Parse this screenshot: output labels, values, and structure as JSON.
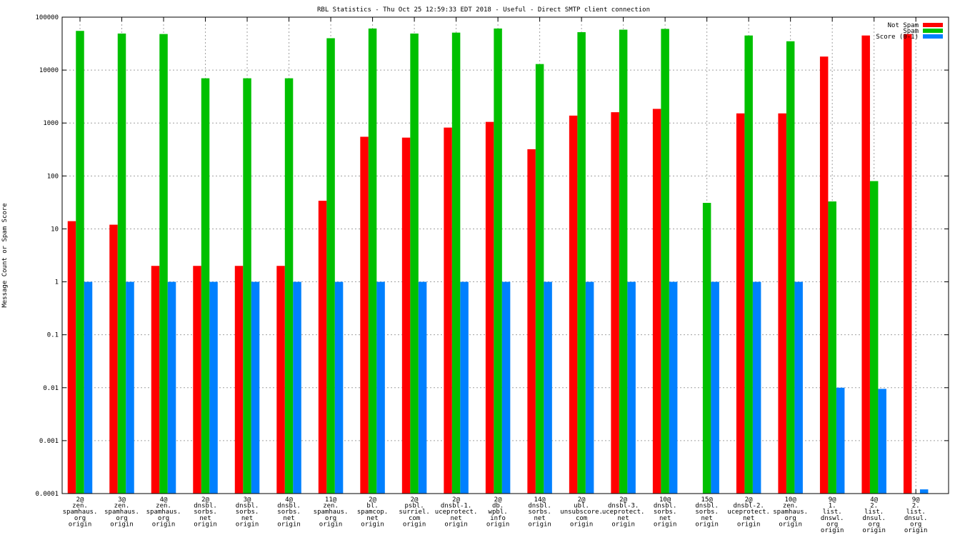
{
  "chart_data": {
    "type": "bar",
    "title": "RBL Statistics - Thu Oct 25 12:59:33 EDT 2018 - Useful - Direct SMTP client connection",
    "ylabel": "Message Count or Spam Score",
    "xlabel": "",
    "yscale": "log",
    "ylim": [
      0.0001,
      100000
    ],
    "grid": true,
    "legend_position": "top-right",
    "y_ticks": [
      "0.0001",
      "0.001",
      "0.01",
      "0.1",
      "1",
      "10",
      "100",
      "1000",
      "10000",
      "100000"
    ],
    "categories": [
      [
        "2@",
        "zen.",
        "spamhaus.",
        "org",
        "origin"
      ],
      [
        "3@",
        "zen.",
        "spamhaus.",
        "org",
        "origin"
      ],
      [
        "4@",
        "zen.",
        "spamhaus.",
        "org",
        "origin"
      ],
      [
        "2@",
        "dnsbl.",
        "sorbs.",
        "net",
        "origin"
      ],
      [
        "3@",
        "dnsbl.",
        "sorbs.",
        "net",
        "origin"
      ],
      [
        "4@",
        "dnsbl.",
        "sorbs.",
        "net",
        "origin"
      ],
      [
        "11@",
        "zen.",
        "spamhaus.",
        "org",
        "origin"
      ],
      [
        "2@",
        "bl.",
        "spamcop.",
        "net",
        "origin"
      ],
      [
        "2@",
        "psbl.",
        "surriel.",
        "com",
        "origin"
      ],
      [
        "2@",
        "dnsbl-1.",
        "uceprotect.",
        "net",
        "origin"
      ],
      [
        "2@",
        "db.",
        "wpbl.",
        "info",
        "origin"
      ],
      [
        "14@",
        "dnsbl.",
        "sorbs.",
        "net",
        "origin"
      ],
      [
        "2@",
        "ubl.",
        "unsubscore.",
        "com",
        "origin"
      ],
      [
        "2@",
        "dnsbl-3.",
        "uceprotect.",
        "net",
        "origin"
      ],
      [
        "10@",
        "dnsbl.",
        "sorbs.",
        "net",
        "origin"
      ],
      [
        "15@",
        "dnsbl.",
        "sorbs.",
        "net",
        "origin"
      ],
      [
        "2@",
        "dnsbl-2.",
        "uceprotect.",
        "net",
        "origin"
      ],
      [
        "10@",
        "zen.",
        "spamhaus.",
        "org",
        "origin"
      ],
      [
        "9@",
        "1.",
        "list.",
        "dnswl.",
        "org",
        "origin"
      ],
      [
        "4@",
        "2.",
        "list.",
        "dnsul.",
        "org",
        "origin"
      ],
      [
        "9@",
        "2.",
        "list.",
        "dnsul.",
        "org",
        "origin"
      ]
    ],
    "series": [
      {
        "name": "Not Spam",
        "color": "#ff0000",
        "values": [
          14,
          12,
          2,
          2,
          2,
          2,
          34,
          550,
          530,
          820,
          1050,
          320,
          1380,
          1600,
          1850,
          null,
          1520,
          1520,
          18000,
          45000,
          48000
        ]
      },
      {
        "name": "Spam",
        "color": "#00c000",
        "values": [
          55000,
          49000,
          48000,
          7000,
          7000,
          7000,
          40000,
          61000,
          49000,
          51000,
          61000,
          13000,
          52000,
          58000,
          60000,
          31,
          45000,
          35000,
          33,
          80,
          null
        ]
      },
      {
        "name": "Score (0-1)",
        "color": "#0080ff",
        "values": [
          1,
          1,
          1,
          1,
          1,
          1,
          1,
          1,
          1,
          1,
          1,
          1,
          1,
          1,
          1,
          1,
          1,
          1,
          0.01,
          0.0095,
          0.00012
        ]
      }
    ]
  }
}
